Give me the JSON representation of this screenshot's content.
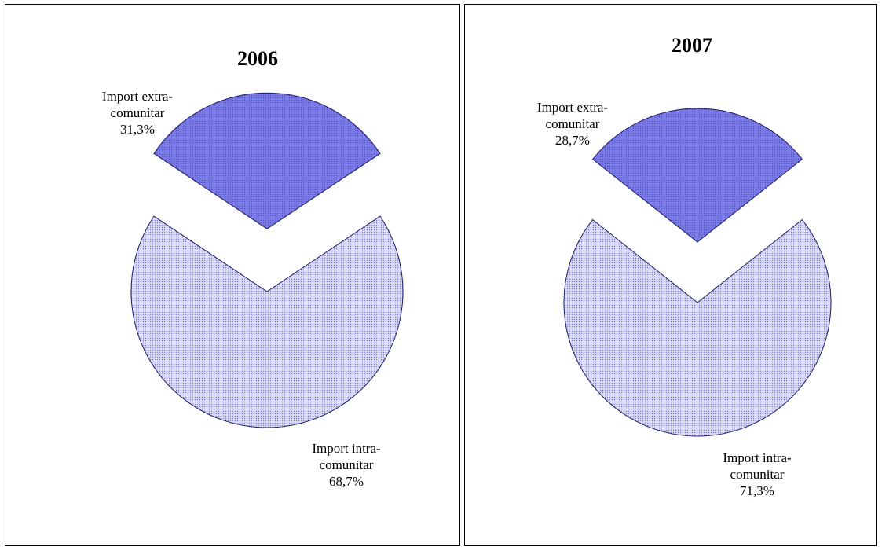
{
  "colors": {
    "extra_fill": "#7b7be6",
    "intra_fill": "#dcdcf4",
    "intra_dots": "#7a7ad8",
    "extra_dots": "#4a4ac4",
    "stroke": "#1a1a66"
  },
  "chart_data": [
    {
      "type": "pie",
      "title": "2006",
      "exploded": true,
      "slices": [
        {
          "label_lines": [
            "Import extra-",
            "comunitar",
            "31,3%"
          ],
          "value": 31.3
        },
        {
          "label_lines": [
            "Import intra-",
            "comunitar",
            "68,7%"
          ],
          "value": 68.7
        }
      ]
    },
    {
      "type": "pie",
      "title": "2007",
      "exploded": true,
      "slices": [
        {
          "label_lines": [
            "Import extra-",
            "comunitar",
            "28,7%"
          ],
          "value": 28.7
        },
        {
          "label_lines": [
            "Import intra-",
            "comunitar",
            "71,3%"
          ],
          "value": 71.3
        }
      ]
    }
  ]
}
